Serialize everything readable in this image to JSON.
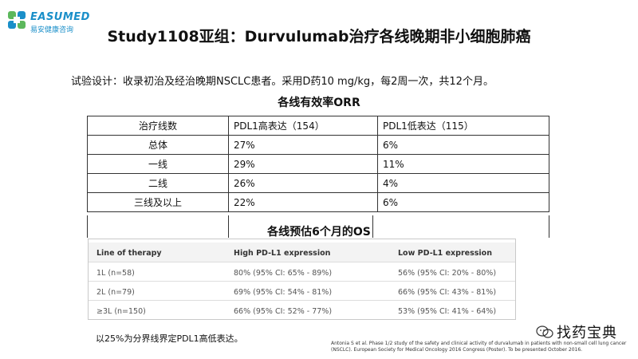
{
  "logo": {
    "name": "EASUMED",
    "subtitle": "易安健康咨询"
  },
  "title": "Study1108亚组：Durvulumab治疗各线晚期非小细胞肺癌",
  "design_text": "试验设计：收录初治及经治晚期NSCLC患者。采用D药10 mg/kg，每2周一次，共12个月。",
  "orr": {
    "title": "各线有效率ORR",
    "headers": [
      "治疗线数",
      "PDL1高表达（154）",
      "PDL1低表达（115）"
    ],
    "rows": [
      [
        "总体",
        "27%",
        "6%"
      ],
      [
        "一线",
        "29%",
        "11%"
      ],
      [
        "二线",
        "26%",
        "4%"
      ],
      [
        "三线及以上",
        "22%",
        "6%"
      ]
    ]
  },
  "os": {
    "title": "各线预估6个月的OS",
    "headers": [
      "Line of therapy",
      "High PD-L1 expression",
      "Low PD-L1 expression"
    ],
    "rows": [
      [
        "1L (n=58)",
        "80% (95% CI: 65% - 89%)",
        "56% (95% CI: 20% - 80%)"
      ],
      [
        "2L (n=79)",
        "69% (95% CI: 54% - 81%)",
        "66% (95% CI: 43% - 81%)"
      ],
      [
        "≥3L (n=150)",
        "66% (95% CI: 52% - 77%)",
        "53% (95% CI: 41% - 64%)"
      ]
    ]
  },
  "note": "以25%为分界线界定PDL1高低表达。",
  "citation": "Antonia S et al. Phase 1/2 study of the safety and clinical activity of durvalumab in patients with non-small cell lung cancer (NSCLC). European Society for Medical Oncology 2016 Congress (Poster). To be presented October 2016.",
  "brand": "找药宝典",
  "colors": {
    "logo": "#1a8fc9",
    "logo_green": "#5cb85c"
  }
}
